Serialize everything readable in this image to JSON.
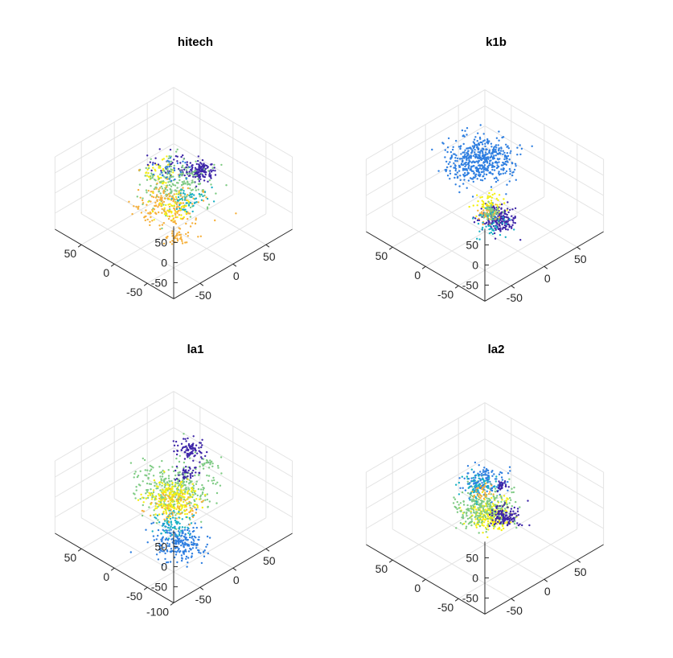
{
  "palette": [
    "#3e26a8",
    "#2f7fe0",
    "#1ab1c4",
    "#7fcb84",
    "#f6b03b",
    "#f4f012"
  ],
  "chart_data": [
    {
      "type": "scatter",
      "title": "hitech",
      "zticks": [
        "50",
        "0",
        "-50"
      ],
      "xticks": [
        "50",
        "0",
        "-50"
      ],
      "yticks": [
        "-50",
        "0",
        "50"
      ],
      "clusters": [
        {
          "color": 0,
          "x": -20,
          "y": 20,
          "z": 55,
          "spread": 8,
          "n": 140
        },
        {
          "color": 5,
          "x": 10,
          "y": -10,
          "z": 48,
          "spread": 10,
          "n": 45
        },
        {
          "color": 0,
          "x": 30,
          "y": 30,
          "z": 20,
          "spread": 12,
          "n": 40
        },
        {
          "color": 3,
          "x": 15,
          "y": 20,
          "z": -10,
          "spread": 20,
          "n": 220
        },
        {
          "color": 4,
          "x": 5,
          "y": -5,
          "z": -35,
          "spread": 18,
          "n": 180
        },
        {
          "color": 4,
          "x": -45,
          "y": -40,
          "z": -30,
          "spread": 6,
          "n": 40
        },
        {
          "color": 2,
          "x": 10,
          "y": 30,
          "z": -55,
          "spread": 10,
          "n": 50
        },
        {
          "color": 5,
          "x": -15,
          "y": -20,
          "z": 0,
          "spread": 12,
          "n": 45
        },
        {
          "color": 1,
          "x": 40,
          "y": 40,
          "z": -15,
          "spread": 10,
          "n": 25
        }
      ]
    },
    {
      "type": "scatter",
      "title": "k1b",
      "zticks": [
        "50",
        "0",
        "-50"
      ],
      "xticks": [
        "50",
        "0",
        "-50"
      ],
      "yticks": [
        "-50",
        "0",
        "50"
      ],
      "clusters": [
        {
          "color": 1,
          "x": 45,
          "y": 40,
          "z": 5,
          "spread": 18,
          "n": 520
        },
        {
          "color": 0,
          "x": -20,
          "y": 0,
          "z": -40,
          "spread": 10,
          "n": 200
        },
        {
          "color": 5,
          "x": -30,
          "y": -25,
          "z": 35,
          "spread": 9,
          "n": 60
        },
        {
          "color": 4,
          "x": -35,
          "y": -30,
          "z": 15,
          "spread": 6,
          "n": 40
        },
        {
          "color": 3,
          "x": -20,
          "y": -10,
          "z": -15,
          "spread": 6,
          "n": 45
        },
        {
          "color": 2,
          "x": -5,
          "y": 5,
          "z": -75,
          "spread": 10,
          "n": 45
        }
      ]
    },
    {
      "type": "scatter",
      "title": "la1",
      "zticks": [
        "50",
        "0",
        "-50"
      ],
      "xticks": [
        "50",
        "0",
        "-50",
        "-100"
      ],
      "yticks": [
        "-50",
        "0",
        "50"
      ],
      "clusters": [
        {
          "color": 3,
          "x": 0,
          "y": 0,
          "z": 20,
          "spread": 22,
          "n": 330
        },
        {
          "color": 0,
          "x": 30,
          "y": 55,
          "z": 35,
          "spread": 8,
          "n": 90
        },
        {
          "color": 0,
          "x": 40,
          "y": 60,
          "z": -40,
          "spread": 6,
          "n": 40
        },
        {
          "color": 1,
          "x": -40,
          "y": -30,
          "z": -45,
          "spread": 14,
          "n": 230
        },
        {
          "color": 5,
          "x": 30,
          "y": 30,
          "z": -60,
          "spread": 14,
          "n": 210
        },
        {
          "color": 2,
          "x": -40,
          "y": -40,
          "z": 10,
          "spread": 10,
          "n": 70
        },
        {
          "color": 4,
          "x": -10,
          "y": -10,
          "z": -5,
          "spread": 14,
          "n": 60
        },
        {
          "color": 3,
          "x": -25,
          "y": 30,
          "z": 78,
          "spread": 4,
          "n": 20
        }
      ]
    },
    {
      "type": "scatter",
      "title": "la2",
      "zticks": [
        "50",
        "0",
        "-50"
      ],
      "xticks": [
        "50",
        "0",
        "-50"
      ],
      "yticks": [
        "-50",
        "0",
        "50"
      ],
      "clusters": [
        {
          "color": 5,
          "x": -35,
          "y": -25,
          "z": 40,
          "spread": 12,
          "n": 220
        },
        {
          "color": 3,
          "x": 10,
          "y": 10,
          "z": -20,
          "spread": 17,
          "n": 260
        },
        {
          "color": 1,
          "x": 40,
          "y": 40,
          "z": -10,
          "spread": 12,
          "n": 130
        },
        {
          "color": 0,
          "x": 5,
          "y": 35,
          "z": -60,
          "spread": 8,
          "n": 120
        },
        {
          "color": 0,
          "x": 45,
          "y": 70,
          "z": -55,
          "spread": 4,
          "n": 30
        },
        {
          "color": 2,
          "x": 30,
          "y": 20,
          "z": 10,
          "spread": 10,
          "n": 60
        },
        {
          "color": 4,
          "x": 20,
          "y": 15,
          "z": 5,
          "spread": 6,
          "n": 30
        }
      ]
    }
  ]
}
